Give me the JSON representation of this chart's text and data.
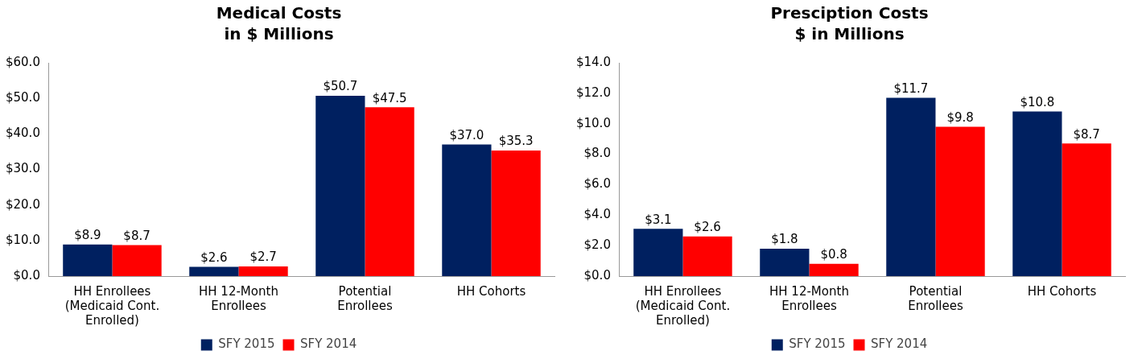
{
  "chart_data": [
    {
      "type": "bar",
      "title": "Medical Costs",
      "subtitle": "in $ Millions",
      "categories": [
        "HH Enrollees (Medicaid Cont. Enrolled)",
        "HH 12-Month Enrollees",
        "Potential Enrollees",
        "HH Cohorts"
      ],
      "series": [
        {
          "name": "SFY 2015",
          "color": "#002060",
          "values": [
            8.9,
            2.6,
            50.7,
            37.0
          ],
          "value_labels": [
            "$8.9",
            "$2.6",
            "$50.7",
            "$37.0"
          ]
        },
        {
          "name": "SFY 2014",
          "color": "#ff0000",
          "values": [
            8.7,
            2.7,
            47.5,
            35.3
          ],
          "value_labels": [
            "$8.7",
            "$2.7",
            "$47.5",
            "$35.3"
          ]
        }
      ],
      "ylim": [
        0,
        60
      ],
      "yticks": [
        {
          "value": 0,
          "label": "$0.0"
        },
        {
          "value": 10,
          "label": "$10.0"
        },
        {
          "value": 20,
          "label": "$20.0"
        },
        {
          "value": 30,
          "label": "$30.0"
        },
        {
          "value": 40,
          "label": "$40.0"
        },
        {
          "value": 50,
          "label": "$50.0"
        },
        {
          "value": 60,
          "label": "$60.0"
        }
      ],
      "grid": false,
      "legend": "bottom"
    },
    {
      "type": "bar",
      "title": "Presciption Costs",
      "subtitle": "$ in Millions",
      "categories": [
        "HH Enrollees (Medicaid Cont. Enrolled)",
        "HH 12-Month Enrollees",
        "Potential Enrollees",
        "HH Cohorts"
      ],
      "series": [
        {
          "name": "SFY 2015",
          "color": "#002060",
          "values": [
            3.1,
            1.8,
            11.7,
            10.8
          ],
          "value_labels": [
            "$3.1",
            "$1.8",
            "$11.7",
            "$10.8"
          ]
        },
        {
          "name": "SFY 2014",
          "color": "#ff0000",
          "values": [
            2.6,
            0.8,
            9.8,
            8.7
          ],
          "value_labels": [
            "$2.6",
            "$0.8",
            "$9.8",
            "$8.7"
          ]
        }
      ],
      "ylim": [
        0,
        14
      ],
      "yticks": [
        {
          "value": 0,
          "label": "$0.0"
        },
        {
          "value": 2,
          "label": "$2.0"
        },
        {
          "value": 4,
          "label": "$4.0"
        },
        {
          "value": 6,
          "label": "$6.0"
        },
        {
          "value": 8,
          "label": "$8.0"
        },
        {
          "value": 10,
          "label": "$10.0"
        },
        {
          "value": 12,
          "label": "$12.0"
        },
        {
          "value": 14,
          "label": "$14.0"
        }
      ],
      "grid": false,
      "legend": "bottom"
    }
  ]
}
